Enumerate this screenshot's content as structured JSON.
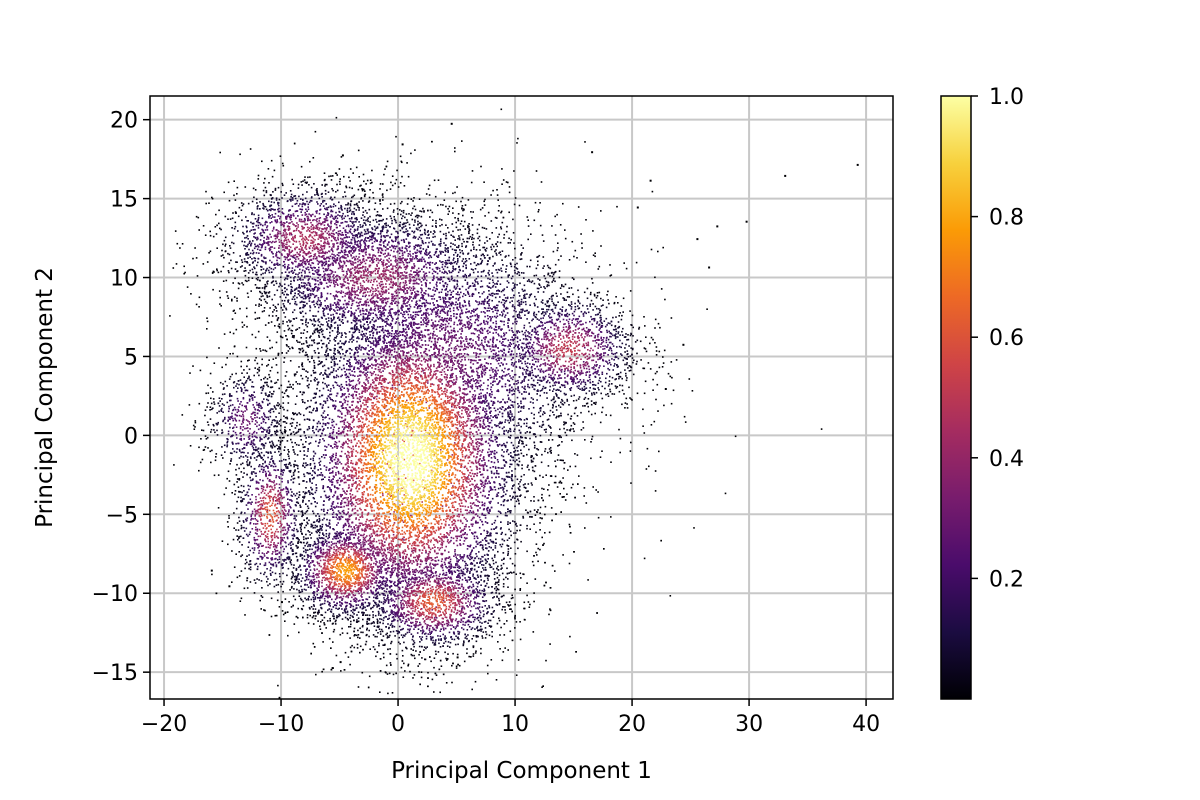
{
  "chart_data": {
    "type": "scatter",
    "style": "point-density colored scatter",
    "title": "",
    "xlabel": "Principal Component 1",
    "ylabel": "Principal Component 2",
    "xlim": [
      -21.2,
      42.3
    ],
    "ylim": [
      -16.7,
      21.5
    ],
    "xticks": [
      -20,
      -10,
      0,
      10,
      20,
      30,
      40
    ],
    "xtick_labels": [
      "−20",
      "−10",
      "0",
      "10",
      "20",
      "30",
      "40"
    ],
    "yticks": [
      -15,
      -10,
      -5,
      0,
      5,
      10,
      15,
      20
    ],
    "ytick_labels": [
      "−15",
      "−10",
      "−5",
      "0",
      "5",
      "10",
      "15",
      "20"
    ],
    "grid": true,
    "colormap": "inferno",
    "colorbar": {
      "range": [
        0.0,
        1.0
      ],
      "ticks": [
        0.2,
        0.4,
        0.6,
        0.8,
        1.0
      ],
      "tick_labels": [
        "0.2",
        "0.4",
        "0.6",
        "0.8",
        "1.0"
      ],
      "stops": [
        "#000004",
        "#1b0c41",
        "#4a0c6b",
        "#781c6d",
        "#a52c60",
        "#cf4446",
        "#ed6925",
        "#fb9b06",
        "#f7d13d",
        "#fcffa4"
      ]
    },
    "density_clusters": [
      {
        "center": [
          1.0,
          -1.5
        ],
        "spread": [
          4.0,
          4.5
        ],
        "peak_density": 1.0
      },
      {
        "center": [
          -4.5,
          -8.5
        ],
        "spread": [
          2.0,
          1.3
        ],
        "peak_density": 0.75
      },
      {
        "center": [
          3.0,
          -10.5
        ],
        "spread": [
          2.5,
          1.3
        ],
        "peak_density": 0.6
      },
      {
        "center": [
          -11.0,
          -5.0
        ],
        "spread": [
          1.2,
          2.0
        ],
        "peak_density": 0.6
      },
      {
        "center": [
          14.5,
          5.5
        ],
        "spread": [
          2.5,
          1.5
        ],
        "peak_density": 0.5
      },
      {
        "center": [
          -8.0,
          12.5
        ],
        "spread": [
          3.0,
          1.5
        ],
        "peak_density": 0.45
      },
      {
        "center": [
          -2.0,
          10.0
        ],
        "spread": [
          4.5,
          2.0
        ],
        "peak_density": 0.4
      },
      {
        "center": [
          -13.0,
          1.0
        ],
        "spread": [
          1.5,
          1.5
        ],
        "peak_density": 0.3
      },
      {
        "center": [
          4.0,
          5.0
        ],
        "spread": [
          6.0,
          4.0
        ],
        "peak_density": 0.3
      }
    ],
    "outlier_points": [
      [
        39.2,
        17.2
      ],
      [
        33.0,
        16.5
      ],
      [
        29.7,
        13.6
      ],
      [
        27.2,
        13.3
      ],
      [
        26.5,
        10.7
      ],
      [
        25.5,
        12.5
      ],
      [
        24.3,
        5.8
      ],
      [
        22.8,
        3.0
      ],
      [
        21.5,
        16.2
      ],
      [
        16.5,
        18.0
      ],
      [
        4.5,
        19.8
      ],
      [
        0.3,
        18.5
      ],
      [
        -4.8,
        17.8
      ],
      [
        20.4,
        14.5
      ],
      [
        -16.0,
        -8.5
      ],
      [
        -14.5,
        -9.5
      ],
      [
        -5.0,
        -14.3
      ],
      [
        5.0,
        -14.0
      ],
      [
        -10.0,
        -10.5
      ]
    ]
  }
}
